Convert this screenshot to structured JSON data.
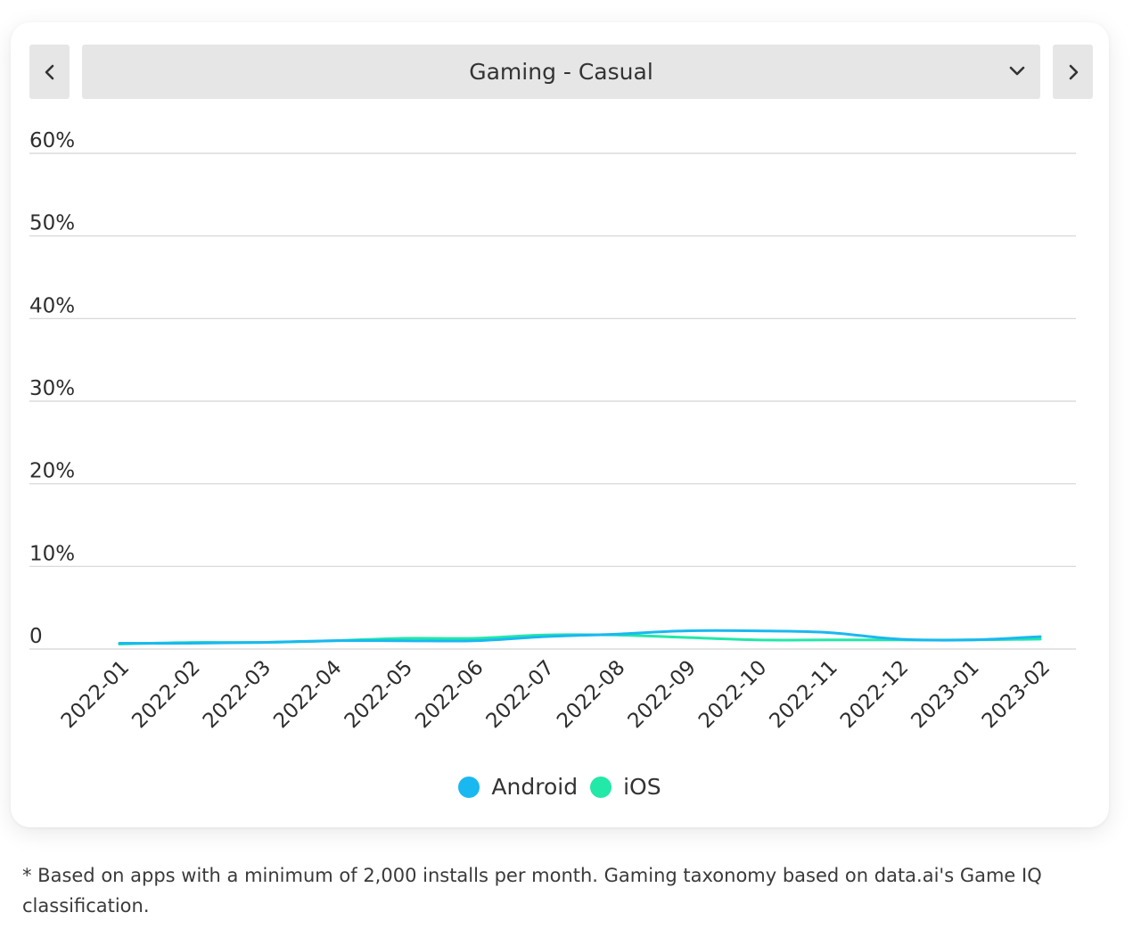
{
  "selector": {
    "prev_icon": "chevron-left-icon",
    "next_icon": "chevron-right-icon",
    "dropdown_icon": "chevron-down-icon",
    "selected": "Gaming - Casual"
  },
  "chart_data": {
    "type": "line",
    "title": "",
    "xlabel": "",
    "ylabel": "",
    "categories": [
      "2022-01",
      "2022-02",
      "2022-03",
      "2022-04",
      "2022-05",
      "2022-06",
      "2022-07",
      "2022-08",
      "2022-09",
      "2022-10",
      "2022-11",
      "2022-12",
      "2023-01",
      "2023-02"
    ],
    "y_ticks": [
      "0",
      "10%",
      "20%",
      "30%",
      "40%",
      "50%",
      "60%"
    ],
    "ylim": [
      0,
      60
    ],
    "unit": "%",
    "grid": true,
    "legend_position": "bottom-center",
    "series": [
      {
        "name": "Android",
        "color": "#1ab8f0",
        "values": [
          0.7,
          0.7,
          0.8,
          1.0,
          1.0,
          1.0,
          1.5,
          1.8,
          2.2,
          2.2,
          2.0,
          1.2,
          1.1,
          1.5
        ]
      },
      {
        "name": "iOS",
        "color": "#22e8a8",
        "values": [
          0.6,
          0.8,
          0.8,
          1.0,
          1.3,
          1.3,
          1.7,
          1.7,
          1.4,
          1.1,
          1.1,
          1.1,
          1.1,
          1.2
        ]
      }
    ]
  },
  "footnote": "* Based on apps with a minimum of 2,000 installs per month. Gaming taxonomy based on data.ai's Game IQ classification."
}
